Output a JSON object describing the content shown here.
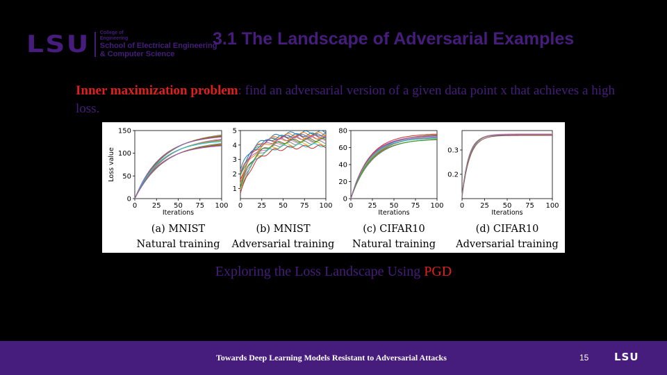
{
  "header": {
    "logo_mark": "LSU",
    "college_line1": "College of",
    "college_line2": "Engineering",
    "school_line1": "School of Electrical Engineering",
    "school_line2": "& Computer Science",
    "title": "3.1 The Landscape of Adversarial Examples"
  },
  "body": {
    "bullet_term": "Inner maximization problem",
    "bullet_rest": ": find an adversarial version of a given data point x that achieves a high loss.",
    "caption_prefix": "Exploring the Loss Landscape Using ",
    "caption_highlight": "PGD"
  },
  "footer": {
    "title": "Towards Deep Learning Models Resistant to Adversarial Attacks",
    "page": "15",
    "logo": "LSU"
  },
  "colors": {
    "purple": "#461d7c",
    "red": "#e0201f",
    "background": "#000000"
  },
  "chart_data": [
    {
      "type": "line",
      "caption_line1": "(a) MNIST",
      "caption_line2": "Natural training",
      "xlabel": "Iterations",
      "ylabel": "Loss value",
      "xlim": [
        0,
        100
      ],
      "ylim": [
        0,
        150
      ],
      "xticks": [
        0,
        25,
        50,
        75,
        100
      ],
      "yticks": [
        0,
        50,
        100,
        150
      ],
      "curve": "saturating",
      "series_final_values": [
        148,
        146,
        144,
        142,
        140,
        138,
        136,
        134,
        132,
        130,
        128,
        126,
        124,
        122,
        120
      ],
      "series_rate": 0.032
    },
    {
      "type": "line",
      "caption_line1": "(b) MNIST",
      "caption_line2": "Adversarial training",
      "xlabel": "",
      "ylabel": "",
      "xlim": [
        0,
        100
      ],
      "ylim": [
        0.3,
        5
      ],
      "xticks": [
        0,
        25,
        50,
        75,
        100
      ],
      "yticks": [
        1,
        2,
        3,
        4,
        5
      ],
      "curve": "saturating",
      "series_start_values": [
        2.3,
        2.0,
        1.8,
        1.6,
        1.4,
        1.2,
        1.0,
        0.9,
        0.8,
        0.7,
        2.1,
        1.5,
        1.1,
        0.6,
        1.9
      ],
      "series_final_values": [
        4.9,
        4.8,
        4.7,
        4.6,
        4.5,
        4.4,
        4.3,
        4.2,
        4.1,
        4.0,
        4.75,
        4.55,
        4.35,
        3.9,
        4.65
      ],
      "series_rate": 0.06
    },
    {
      "type": "line",
      "caption_line1": "(c) CIFAR10",
      "caption_line2": "Natural training",
      "xlabel": "Iterations",
      "ylabel": "",
      "xlim": [
        0,
        100
      ],
      "ylim": [
        0,
        80
      ],
      "xticks": [
        0,
        25,
        50,
        75,
        100
      ],
      "yticks": [
        0,
        20,
        40,
        60,
        80
      ],
      "curve": "saturating",
      "series_final_values": [
        76,
        75.5,
        75,
        74.5,
        74,
        73.5,
        73,
        72.5,
        72,
        71.5,
        71,
        70.5,
        70,
        76.5,
        72.8
      ],
      "series_rate": 0.045
    },
    {
      "type": "line",
      "caption_line1": "(d) CIFAR10",
      "caption_line2": "Adversarial training",
      "xlabel": "Iterations",
      "ylabel": "",
      "xlim": [
        0,
        100
      ],
      "ylim": [
        0.1,
        0.38
      ],
      "xticks": [
        0,
        25,
        50,
        75,
        100
      ],
      "yticks": [
        0.2,
        0.3
      ],
      "curve": "saturating",
      "series_start_values": [
        0.115,
        0.113,
        0.111,
        0.109,
        0.107,
        0.105,
        0.117,
        0.112
      ],
      "series_final_values": [
        0.365,
        0.364,
        0.363,
        0.362,
        0.361,
        0.36,
        0.366,
        0.3635
      ],
      "series_rate": 0.13
    }
  ]
}
